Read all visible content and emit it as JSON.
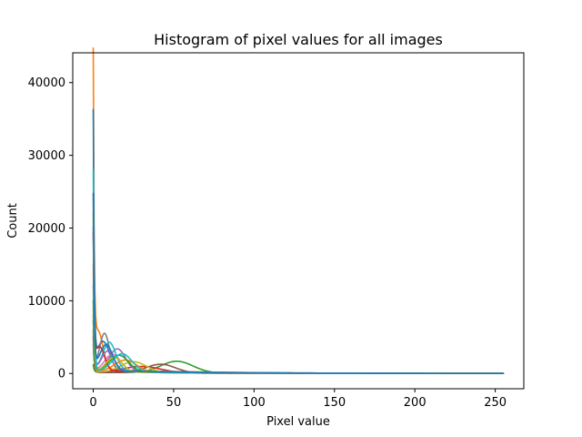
{
  "chart_data": {
    "type": "line",
    "title": "Histogram of pixel values for all images",
    "xlabel": "Pixel value",
    "ylabel": "Count",
    "xlim": [
      -12.75,
      267.75
    ],
    "ylim": [
      -2100,
      44100
    ],
    "xticks": [
      0,
      50,
      100,
      150,
      200,
      250
    ],
    "yticks": [
      0,
      10000,
      20000,
      30000,
      40000
    ],
    "grid": false,
    "legend": "none",
    "series": [
      {
        "color": "#ff7f0e",
        "peak": 41600,
        "hump_center": 3,
        "hump_height": 5200,
        "hump_width": 3
      },
      {
        "color": "#1f77b4",
        "peak": 35000,
        "hump_center": 6,
        "hump_height": 4000,
        "hump_width": 4
      },
      {
        "color": "#2ca02c",
        "peak": 1200,
        "hump_center": 52,
        "hump_height": 1600,
        "hump_width": 10
      },
      {
        "color": "#d62728",
        "peak": 5000,
        "hump_center": 30,
        "hump_height": 900,
        "hump_width": 12
      },
      {
        "color": "#9467bd",
        "peak": 4000,
        "hump_center": 15,
        "hump_height": 3100,
        "hump_width": 5
      },
      {
        "color": "#8c564b",
        "peak": 6000,
        "hump_center": 42,
        "hump_height": 1200,
        "hump_width": 9
      },
      {
        "color": "#e377c2",
        "peak": 8000,
        "hump_center": 12,
        "hump_height": 2400,
        "hump_width": 5
      },
      {
        "color": "#7f7f7f",
        "peak": 7000,
        "hump_center": 7,
        "hump_height": 5000,
        "hump_width": 3
      },
      {
        "color": "#bcbd22",
        "peak": 9000,
        "hump_center": 25,
        "hump_height": 1500,
        "hump_width": 8
      },
      {
        "color": "#17becf",
        "peak": 12000,
        "hump_center": 10,
        "hump_height": 3900,
        "hump_width": 4
      },
      {
        "color": "#ff7f0e",
        "peak": 15000,
        "hump_center": 20,
        "hump_height": 1700,
        "hump_width": 7
      },
      {
        "color": "#2ca02c",
        "peak": 10000,
        "hump_center": 16,
        "hump_height": 2300,
        "hump_width": 6
      },
      {
        "color": "#d62728",
        "peak": 18000,
        "hump_center": 4,
        "hump_height": 3300,
        "hump_width": 3
      },
      {
        "color": "#9467bd",
        "peak": 20000,
        "hump_center": 9,
        "hump_height": 2800,
        "hump_width": 4
      },
      {
        "color": "#bcbd22",
        "peak": 22000,
        "hump_center": 13,
        "hump_height": 2000,
        "hump_width": 5
      },
      {
        "color": "#17becf",
        "peak": 28000,
        "hump_center": 18,
        "hump_height": 2500,
        "hump_width": 6
      },
      {
        "color": "#1f77b4",
        "peak": 24300,
        "hump_center": 8,
        "hump_height": 3600,
        "hump_width": 4
      }
    ]
  }
}
